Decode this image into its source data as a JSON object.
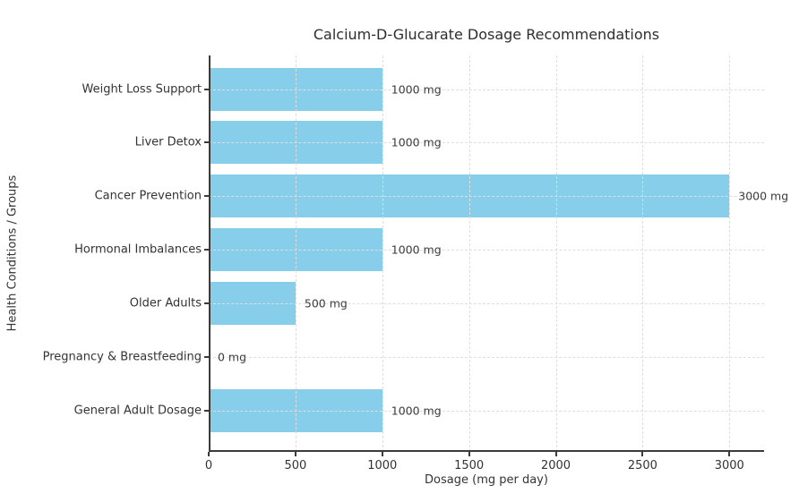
{
  "chart_data": {
    "type": "bar",
    "orientation": "horizontal",
    "title": "Calcium-D-Glucarate Dosage Recommendations",
    "xlabel": "Dosage (mg per day)",
    "ylabel": "Health Conditions / Groups",
    "categories": [
      "Weight Loss Support",
      "Liver Detox",
      "Cancer Prevention",
      "Hormonal Imbalances",
      "Older Adults",
      "Pregnancy & Breastfeeding",
      "General Adult Dosage"
    ],
    "values": [
      1000,
      1000,
      3000,
      1000,
      500,
      0,
      1000
    ],
    "value_labels": [
      "1000 mg",
      "1000 mg",
      "3000 mg",
      "1000 mg",
      "500 mg",
      "0 mg",
      "1000 mg"
    ],
    "x_ticks": [
      0,
      500,
      1000,
      1500,
      2000,
      2500,
      3000
    ],
    "xlim": [
      0,
      3200
    ],
    "grid": "dashed, both axes, drawn above bars",
    "legend": "none",
    "colors": {
      "bar": "#87CEEB",
      "grid": "#dedede",
      "spine": "#3b3b3b",
      "text": "#333333",
      "background": "#ffffff"
    }
  }
}
